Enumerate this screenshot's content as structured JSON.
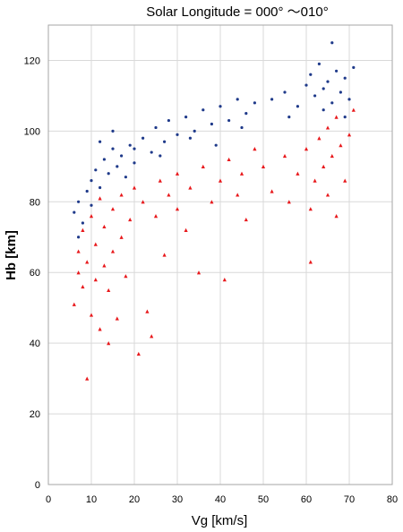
{
  "chart_data": {
    "type": "scatter",
    "title": "Solar Longitude = 000° ～010°",
    "xlabel": "Vg [km/s]",
    "ylabel": "Hb [km]",
    "xlim": [
      0,
      80
    ],
    "ylim": [
      0,
      130
    ],
    "x_ticks": [
      "0",
      "10",
      "20",
      "30",
      "40",
      "50",
      "60",
      "70",
      "80"
    ],
    "y_ticks": [
      "0",
      "20",
      "40",
      "60",
      "80",
      "100",
      "120"
    ],
    "grid": true,
    "legend": "none",
    "series": [
      {
        "marker": "dot",
        "color": "#1f3a8a",
        "points": [
          [
            6,
            77
          ],
          [
            7,
            80
          ],
          [
            8,
            74
          ],
          [
            9,
            83
          ],
          [
            10,
            86
          ],
          [
            10,
            79
          ],
          [
            11,
            89
          ],
          [
            12,
            84
          ],
          [
            13,
            92
          ],
          [
            14,
            88
          ],
          [
            15,
            95
          ],
          [
            16,
            90
          ],
          [
            17,
            93
          ],
          [
            18,
            87
          ],
          [
            19,
            96
          ],
          [
            20,
            91
          ],
          [
            22,
            98
          ],
          [
            24,
            94
          ],
          [
            25,
            101
          ],
          [
            27,
            97
          ],
          [
            28,
            103
          ],
          [
            30,
            99
          ],
          [
            32,
            104
          ],
          [
            34,
            100
          ],
          [
            36,
            106
          ],
          [
            38,
            102
          ],
          [
            40,
            107
          ],
          [
            42,
            103
          ],
          [
            44,
            109
          ],
          [
            46,
            105
          ],
          [
            48,
            108
          ],
          [
            52,
            109
          ],
          [
            55,
            111
          ],
          [
            58,
            107
          ],
          [
            60,
            113
          ],
          [
            61,
            116
          ],
          [
            62,
            110
          ],
          [
            63,
            119
          ],
          [
            64,
            112
          ],
          [
            65,
            114
          ],
          [
            66,
            125
          ],
          [
            66,
            108
          ],
          [
            67,
            117
          ],
          [
            68,
            111
          ],
          [
            69,
            115
          ],
          [
            70,
            109
          ],
          [
            71,
            118
          ],
          [
            7,
            70
          ],
          [
            12,
            97
          ],
          [
            15,
            100
          ],
          [
            20,
            95
          ],
          [
            26,
            93
          ],
          [
            33,
            98
          ],
          [
            39,
            96
          ],
          [
            45,
            101
          ],
          [
            56,
            104
          ],
          [
            64,
            106
          ],
          [
            69,
            104
          ]
        ]
      },
      {
        "marker": "triangle",
        "color": "#e8191c",
        "points": [
          [
            6,
            51
          ],
          [
            7,
            60
          ],
          [
            7,
            66
          ],
          [
            8,
            56
          ],
          [
            8,
            72
          ],
          [
            9,
            63
          ],
          [
            9,
            30
          ],
          [
            10,
            48
          ],
          [
            10,
            76
          ],
          [
            11,
            58
          ],
          [
            11,
            68
          ],
          [
            12,
            44
          ],
          [
            12,
            81
          ],
          [
            13,
            62
          ],
          [
            13,
            73
          ],
          [
            14,
            40
          ],
          [
            14,
            55
          ],
          [
            15,
            78
          ],
          [
            15,
            66
          ],
          [
            16,
            47
          ],
          [
            17,
            82
          ],
          [
            17,
            70
          ],
          [
            18,
            59
          ],
          [
            19,
            75
          ],
          [
            20,
            84
          ],
          [
            21,
            37
          ],
          [
            22,
            80
          ],
          [
            23,
            49
          ],
          [
            24,
            42
          ],
          [
            25,
            76
          ],
          [
            26,
            86
          ],
          [
            27,
            65
          ],
          [
            28,
            82
          ],
          [
            30,
            78
          ],
          [
            30,
            88
          ],
          [
            32,
            72
          ],
          [
            33,
            84
          ],
          [
            35,
            60
          ],
          [
            36,
            90
          ],
          [
            38,
            80
          ],
          [
            40,
            86
          ],
          [
            41,
            58
          ],
          [
            42,
            92
          ],
          [
            44,
            82
          ],
          [
            45,
            88
          ],
          [
            46,
            75
          ],
          [
            48,
            95
          ],
          [
            50,
            90
          ],
          [
            52,
            83
          ],
          [
            55,
            93
          ],
          [
            56,
            80
          ],
          [
            58,
            88
          ],
          [
            60,
            95
          ],
          [
            61,
            63
          ],
          [
            62,
            86
          ],
          [
            63,
            98
          ],
          [
            64,
            90
          ],
          [
            65,
            101
          ],
          [
            66,
            93
          ],
          [
            67,
            76
          ],
          [
            67,
            104
          ],
          [
            68,
            96
          ],
          [
            69,
            86
          ],
          [
            70,
            99
          ],
          [
            71,
            106
          ],
          [
            61,
            78
          ],
          [
            65,
            82
          ]
        ]
      }
    ]
  }
}
